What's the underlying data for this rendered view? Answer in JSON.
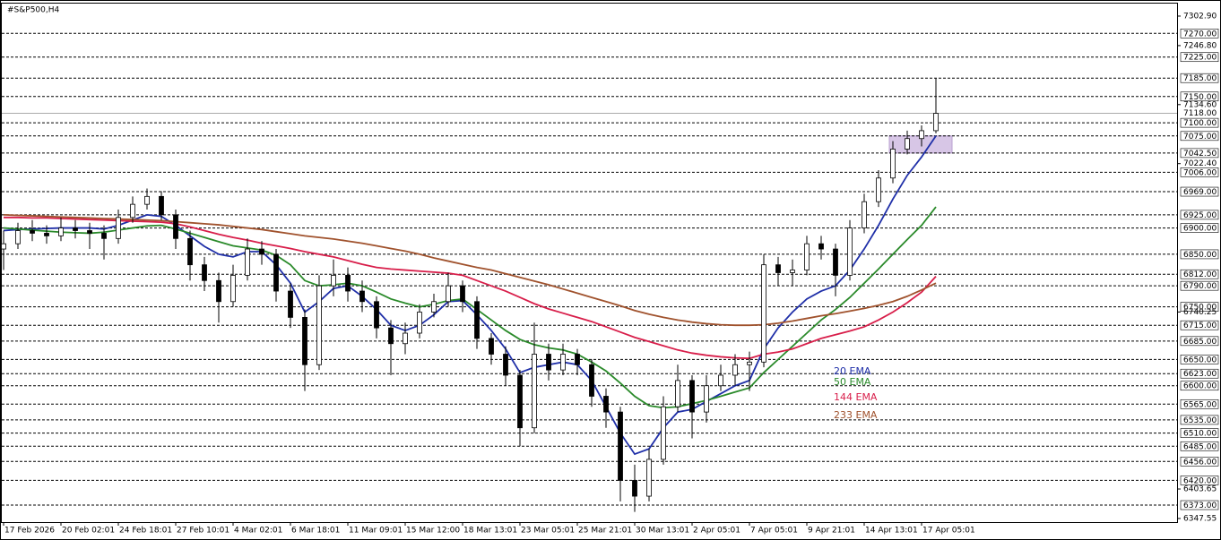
{
  "chart_data": {
    "type": "candlestick",
    "title": "#S&P500,H4",
    "categories": [
      "17 Feb 2026",
      null,
      null,
      null,
      "20 Feb 02:01",
      null,
      null,
      null,
      "24 Feb 18:01",
      null,
      null,
      null,
      "27 Feb 10:01",
      null,
      null,
      null,
      "4 Mar 02:01",
      null,
      null,
      null,
      "6 Mar 18:01",
      null,
      null,
      null,
      "11 Mar 09:01",
      null,
      null,
      null,
      "15 Mar 12:00",
      null,
      null,
      null,
      "18 Mar 13:01",
      null,
      null,
      null,
      "23 Mar 05:01",
      null,
      null,
      null,
      "25 Mar 21:01",
      null,
      null,
      null,
      "30 Mar 13:01",
      null,
      null,
      null,
      "2 Apr 05:01",
      null,
      null,
      null,
      "7 Apr 05:01",
      null,
      null,
      null,
      "9 Apr 21:01",
      null,
      null,
      null,
      "14 Apr 13:01",
      null,
      null,
      null,
      "17 Apr 05:01",
      null
    ],
    "ohlc": [
      [
        6860,
        6895,
        6820,
        6870
      ],
      [
        6870,
        6910,
        6860,
        6895
      ],
      [
        6895,
        6915,
        6875,
        6890
      ],
      [
        6890,
        6905,
        6870,
        6885
      ],
      [
        6885,
        6920,
        6875,
        6900
      ],
      [
        6900,
        6915,
        6880,
        6895
      ],
      [
        6895,
        6910,
        6860,
        6890
      ],
      [
        6890,
        6905,
        6840,
        6880
      ],
      [
        6880,
        6935,
        6870,
        6920
      ],
      [
        6920,
        6960,
        6910,
        6945
      ],
      [
        6945,
        6975,
        6935,
        6960
      ],
      [
        6960,
        6970,
        6915,
        6925
      ],
      [
        6925,
        6935,
        6860,
        6880
      ],
      [
        6880,
        6895,
        6800,
        6830
      ],
      [
        6830,
        6845,
        6780,
        6800
      ],
      [
        6800,
        6815,
        6720,
        6760
      ],
      [
        6760,
        6830,
        6750,
        6810
      ],
      [
        6810,
        6880,
        6800,
        6860
      ],
      [
        6860,
        6875,
        6830,
        6850
      ],
      [
        6850,
        6860,
        6760,
        6780
      ],
      [
        6780,
        6795,
        6710,
        6730
      ],
      [
        6730,
        6745,
        6590,
        6640
      ],
      [
        6640,
        6810,
        6630,
        6790
      ],
      [
        6790,
        6840,
        6770,
        6810
      ],
      [
        6810,
        6825,
        6760,
        6780
      ],
      [
        6780,
        6800,
        6740,
        6760
      ],
      [
        6760,
        6770,
        6690,
        6710
      ],
      [
        6710,
        6725,
        6620,
        6680
      ],
      [
        6680,
        6720,
        6660,
        6700
      ],
      [
        6700,
        6755,
        6690,
        6740
      ],
      [
        6740,
        6775,
        6730,
        6760
      ],
      [
        6760,
        6815,
        6750,
        6790
      ],
      [
        6790,
        6800,
        6740,
        6760
      ],
      [
        6760,
        6770,
        6670,
        6690
      ],
      [
        6690,
        6700,
        6640,
        6660
      ],
      [
        6660,
        6675,
        6600,
        6620
      ],
      [
        6620,
        6630,
        6485,
        6520
      ],
      [
        6520,
        6720,
        6510,
        6660
      ],
      [
        6660,
        6680,
        6610,
        6630
      ],
      [
        6630,
        6680,
        6620,
        6660
      ],
      [
        6660,
        6670,
        6620,
        6640
      ],
      [
        6640,
        6650,
        6560,
        6580
      ],
      [
        6580,
        6595,
        6520,
        6550
      ],
      [
        6550,
        6560,
        6380,
        6420
      ],
      [
        6420,
        6450,
        6360,
        6390
      ],
      [
        6390,
        6480,
        6380,
        6460
      ],
      [
        6460,
        6580,
        6450,
        6560
      ],
      [
        6560,
        6640,
        6550,
        6610
      ],
      [
        6610,
        6620,
        6500,
        6550
      ],
      [
        6550,
        6620,
        6530,
        6600
      ],
      [
        6600,
        6640,
        6590,
        6620
      ],
      [
        6620,
        6660,
        6600,
        6640
      ],
      [
        6640,
        6665,
        6590,
        6645
      ],
      [
        6645,
        6850,
        6635,
        6830
      ],
      [
        6830,
        6845,
        6790,
        6815
      ],
      [
        6815,
        6840,
        6790,
        6820
      ],
      [
        6820,
        6885,
        6810,
        6870
      ],
      [
        6870,
        6885,
        6840,
        6860
      ],
      [
        6860,
        6870,
        6770,
        6810
      ],
      [
        6810,
        6915,
        6800,
        6900
      ],
      [
        6900,
        6965,
        6890,
        6950
      ],
      [
        6950,
        7010,
        6940,
        6995
      ],
      [
        6995,
        7065,
        6985,
        7050
      ],
      [
        7050,
        7085,
        7040,
        7070
      ],
      [
        7070,
        7095,
        7055,
        7085
      ],
      [
        7085,
        7185,
        7080,
        7118
      ]
    ],
    "up_color": "#ffffff",
    "down_color": "#000000",
    "wick_color": "#000000",
    "series": [
      {
        "name": "20 EMA",
        "color": "#1f2fa8",
        "values": [
          6895,
          6897,
          6898,
          6899,
          6900,
          6900,
          6900,
          6898,
          6905,
          6915,
          6925,
          6922,
          6905,
          6885,
          6865,
          6850,
          6845,
          6855,
          6855,
          6830,
          6795,
          6740,
          6760,
          6785,
          6790,
          6770,
          6745,
          6715,
          6705,
          6715,
          6735,
          6760,
          6762,
          6735,
          6705,
          6670,
          6625,
          6635,
          6640,
          6645,
          6640,
          6610,
          6560,
          6510,
          6470,
          6480,
          6520,
          6550,
          6555,
          6570,
          6585,
          6600,
          6610,
          6670,
          6710,
          6740,
          6765,
          6780,
          6790,
          6820,
          6860,
          6905,
          6955,
          7000,
          7035,
          7075
        ]
      },
      {
        "name": "50 EMA",
        "color": "#2a8a2a",
        "values": [
          6900,
          6898,
          6896,
          6894,
          6892,
          6891,
          6890,
          6892,
          6896,
          6900,
          6904,
          6905,
          6898,
          6890,
          6882,
          6874,
          6866,
          6862,
          6858,
          6848,
          6830,
          6800,
          6790,
          6792,
          6795,
          6790,
          6778,
          6765,
          6757,
          6750,
          6755,
          6762,
          6765,
          6745,
          6725,
          6705,
          6688,
          6678,
          6672,
          6668,
          6660,
          6645,
          6628,
          6605,
          6580,
          6562,
          6558,
          6560,
          6566,
          6572,
          6580,
          6588,
          6596,
          6625,
          6650,
          6675,
          6700,
          6725,
          6745,
          6768,
          6795,
          6822,
          6850,
          6878,
          6905,
          6940
        ]
      },
      {
        "name": "144 EMA",
        "color": "#d81e4a",
        "values": [
          6920,
          6920,
          6919,
          6919,
          6918,
          6917,
          6916,
          6915,
          6914,
          6913,
          6912,
          6911,
          6908,
          6902,
          6895,
          6888,
          6882,
          6877,
          6871,
          6866,
          6861,
          6855,
          6850,
          6845,
          6838,
          6831,
          6825,
          6822,
          6820,
          6818,
          6816,
          6814,
          6810,
          6800,
          6790,
          6780,
          6768,
          6756,
          6746,
          6738,
          6730,
          6722,
          6712,
          6702,
          6692,
          6684,
          6676,
          6668,
          6662,
          6658,
          6655,
          6653,
          6652,
          6660,
          6664,
          6670,
          6680,
          6690,
          6697,
          6704,
          6712,
          6725,
          6740,
          6758,
          6778,
          6808
        ]
      },
      {
        "name": "233 EMA",
        "color": "#a0522d",
        "values": [
          6925,
          6924,
          6923,
          6922,
          6921,
          6920,
          6919,
          6918,
          6917,
          6916,
          6915,
          6914,
          6912,
          6910,
          6908,
          6906,
          6903,
          6900,
          6897,
          6893,
          6889,
          6885,
          6882,
          6879,
          6875,
          6871,
          6866,
          6861,
          6856,
          6850,
          6843,
          6837,
          6831,
          6825,
          6820,
          6813,
          6806,
          6799,
          6792,
          6784,
          6776,
          6768,
          6760,
          6752,
          6743,
          6736,
          6730,
          6725,
          6721,
          6718,
          6716,
          6715,
          6715,
          6716,
          6719,
          6723,
          6728,
          6733,
          6737,
          6742,
          6747,
          6753,
          6760,
          6770,
          6782,
          6795
        ]
      }
    ],
    "ylim": [
      6340.7,
      7326.7
    ],
    "yticks": [
      {
        "value": 7302.9,
        "label": "7302.90"
      },
      {
        "value": 7246.8,
        "label": "7246.80"
      },
      {
        "value": 7134.6,
        "label": "7134.60"
      },
      {
        "value": 7022.4,
        "label": "7022.40"
      },
      {
        "value": 6740.25,
        "label": "6740.25"
      },
      {
        "value": 6403.65,
        "label": "6403.65"
      },
      {
        "value": 6347.55,
        "label": "6347.55"
      }
    ],
    "levels": [
      {
        "value": 7270,
        "label": "7270.00"
      },
      {
        "value": 7225,
        "label": "7225.00"
      },
      {
        "value": 7185,
        "label": "7185.00"
      },
      {
        "value": 7150,
        "label": "7150.00"
      },
      {
        "value": 7100,
        "label": "7100.00"
      },
      {
        "value": 7075,
        "label": "7075.00"
      },
      {
        "value": 7042.5,
        "label": "7042.50"
      },
      {
        "value": 7006,
        "label": "7006.00"
      },
      {
        "value": 6969,
        "label": "6969.00"
      },
      {
        "value": 6925,
        "label": "6925.00"
      },
      {
        "value": 6900,
        "label": "6900.00"
      },
      {
        "value": 6850,
        "label": "6850.00"
      },
      {
        "value": 6812,
        "label": "6812.00"
      },
      {
        "value": 6790,
        "label": "6790.00"
      },
      {
        "value": 6750,
        "label": "6750.00"
      },
      {
        "value": 6715,
        "label": "6715.00"
      },
      {
        "value": 6685,
        "label": "6685.00"
      },
      {
        "value": 6650,
        "label": "6650.00"
      },
      {
        "value": 6623,
        "label": "6623.00"
      },
      {
        "value": 6600,
        "label": "6600.00"
      },
      {
        "value": 6565,
        "label": "6565.00"
      },
      {
        "value": 6535,
        "label": "6535.00"
      },
      {
        "value": 6510,
        "label": "6510.00"
      },
      {
        "value": 6485,
        "label": "6485.00"
      },
      {
        "value": 6456,
        "label": "6456.00"
      },
      {
        "value": 6420,
        "label": "6420.00"
      },
      {
        "value": 6373,
        "label": "6373.00"
      }
    ],
    "price_line": {
      "value": 7118,
      "label": "7118.00"
    },
    "zone": {
      "low": 7042.5,
      "high": 7075,
      "color": "#d7c6e6"
    }
  }
}
